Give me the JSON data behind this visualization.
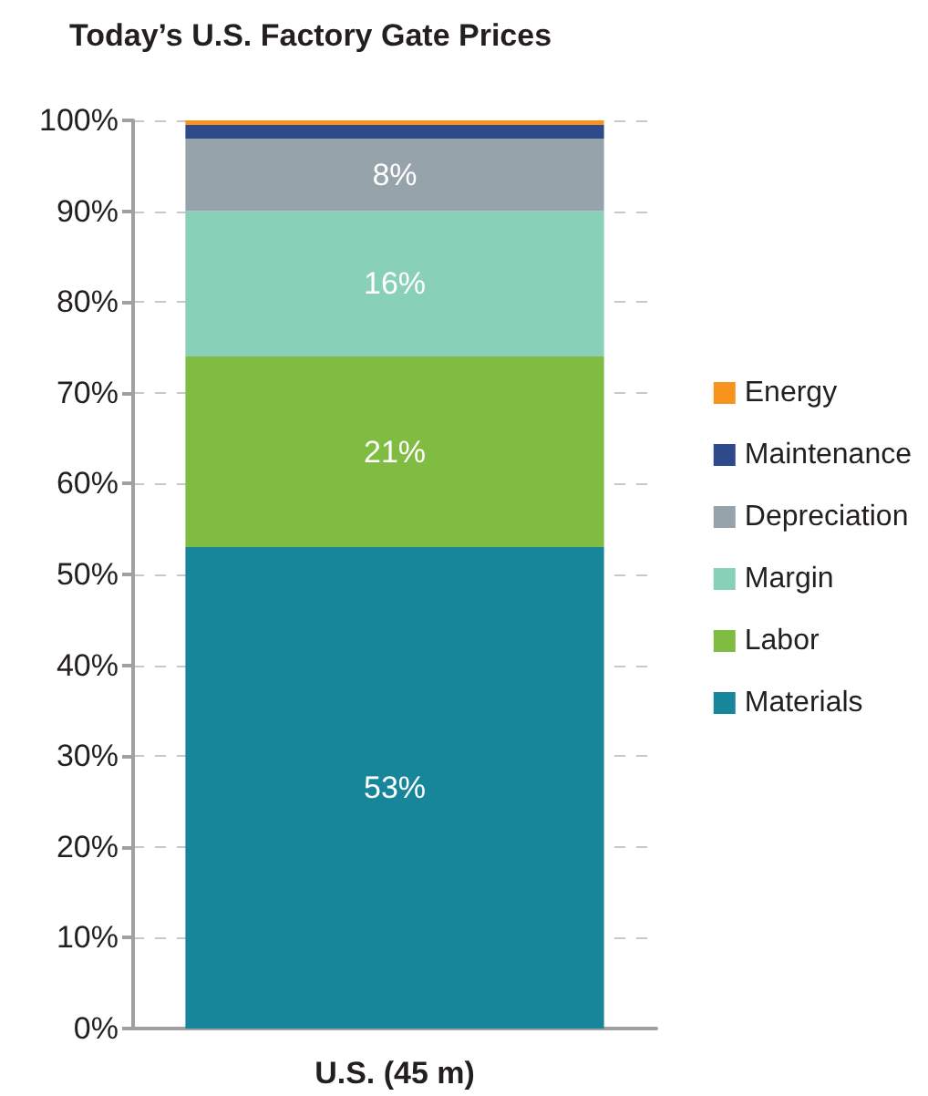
{
  "chart_data": {
    "type": "bar",
    "title": "Today’s U.S. Factory Gate Prices",
    "categories": [
      "U.S. (45 m)"
    ],
    "stacked": true,
    "series": [
      {
        "name": "Materials",
        "color": "#17869b",
        "values": [
          53
        ],
        "value_labels": [
          "53%"
        ]
      },
      {
        "name": "Labor",
        "color": "#7fbc41",
        "values": [
          21
        ],
        "value_labels": [
          "21%"
        ]
      },
      {
        "name": "Margin",
        "color": "#88d0b8",
        "values": [
          16
        ],
        "value_labels": [
          "16%"
        ]
      },
      {
        "name": "Depreciation",
        "color": "#97a3ab",
        "values": [
          8
        ],
        "value_labels": [
          "8%"
        ]
      },
      {
        "name": "Maintenance",
        "color": "#2e4a8b",
        "values": [
          1.5
        ]
      },
      {
        "name": "Energy",
        "color": "#f7941d",
        "values": [
          0.5
        ]
      }
    ],
    "ylim": [
      0,
      100
    ],
    "yticks": [
      {
        "value": 0,
        "label": "0%"
      },
      {
        "value": 10,
        "label": "10%"
      },
      {
        "value": 20,
        "label": "20%"
      },
      {
        "value": 30,
        "label": "30%"
      },
      {
        "value": 40,
        "label": "40%"
      },
      {
        "value": 50,
        "label": "50%"
      },
      {
        "value": 60,
        "label": "60%"
      },
      {
        "value": 70,
        "label": "70%"
      },
      {
        "value": 80,
        "label": "80%"
      },
      {
        "value": 90,
        "label": "90%"
      },
      {
        "value": 100,
        "label": "100%"
      }
    ],
    "grid": "y",
    "legend": "right"
  }
}
